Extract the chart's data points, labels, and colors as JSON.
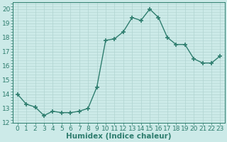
{
  "x": [
    0,
    1,
    2,
    3,
    4,
    5,
    6,
    7,
    8,
    9,
    10,
    11,
    12,
    13,
    14,
    15,
    16,
    17,
    18,
    19,
    20,
    21,
    22,
    23
  ],
  "y": [
    14.0,
    13.3,
    13.1,
    12.5,
    12.8,
    12.7,
    12.7,
    12.8,
    13.0,
    14.5,
    17.8,
    17.9,
    18.4,
    19.4,
    19.2,
    20.0,
    19.4,
    18.0,
    17.5,
    17.5,
    16.5,
    16.2,
    16.2,
    16.7
  ],
  "line_color": "#2e7d6e",
  "marker": "+",
  "marker_size": 4,
  "marker_lw": 1.2,
  "bg_color": "#cceae8",
  "grid_color": "#b0d4d0",
  "xlabel": "Humidex (Indice chaleur)",
  "xlim": [
    -0.5,
    23.5
  ],
  "ylim": [
    12,
    20.5
  ],
  "yticks": [
    12,
    13,
    14,
    15,
    16,
    17,
    18,
    19,
    20
  ],
  "xtick_labels": [
    "0",
    "1",
    "2",
    "3",
    "4",
    "5",
    "6",
    "7",
    "8",
    "9",
    "10",
    "11",
    "12",
    "13",
    "14",
    "15",
    "16",
    "17",
    "18",
    "19",
    "20",
    "21",
    "22",
    "23"
  ],
  "xlabel_fontsize": 7.5,
  "tick_fontsize": 6.5,
  "linewidth": 1.0
}
